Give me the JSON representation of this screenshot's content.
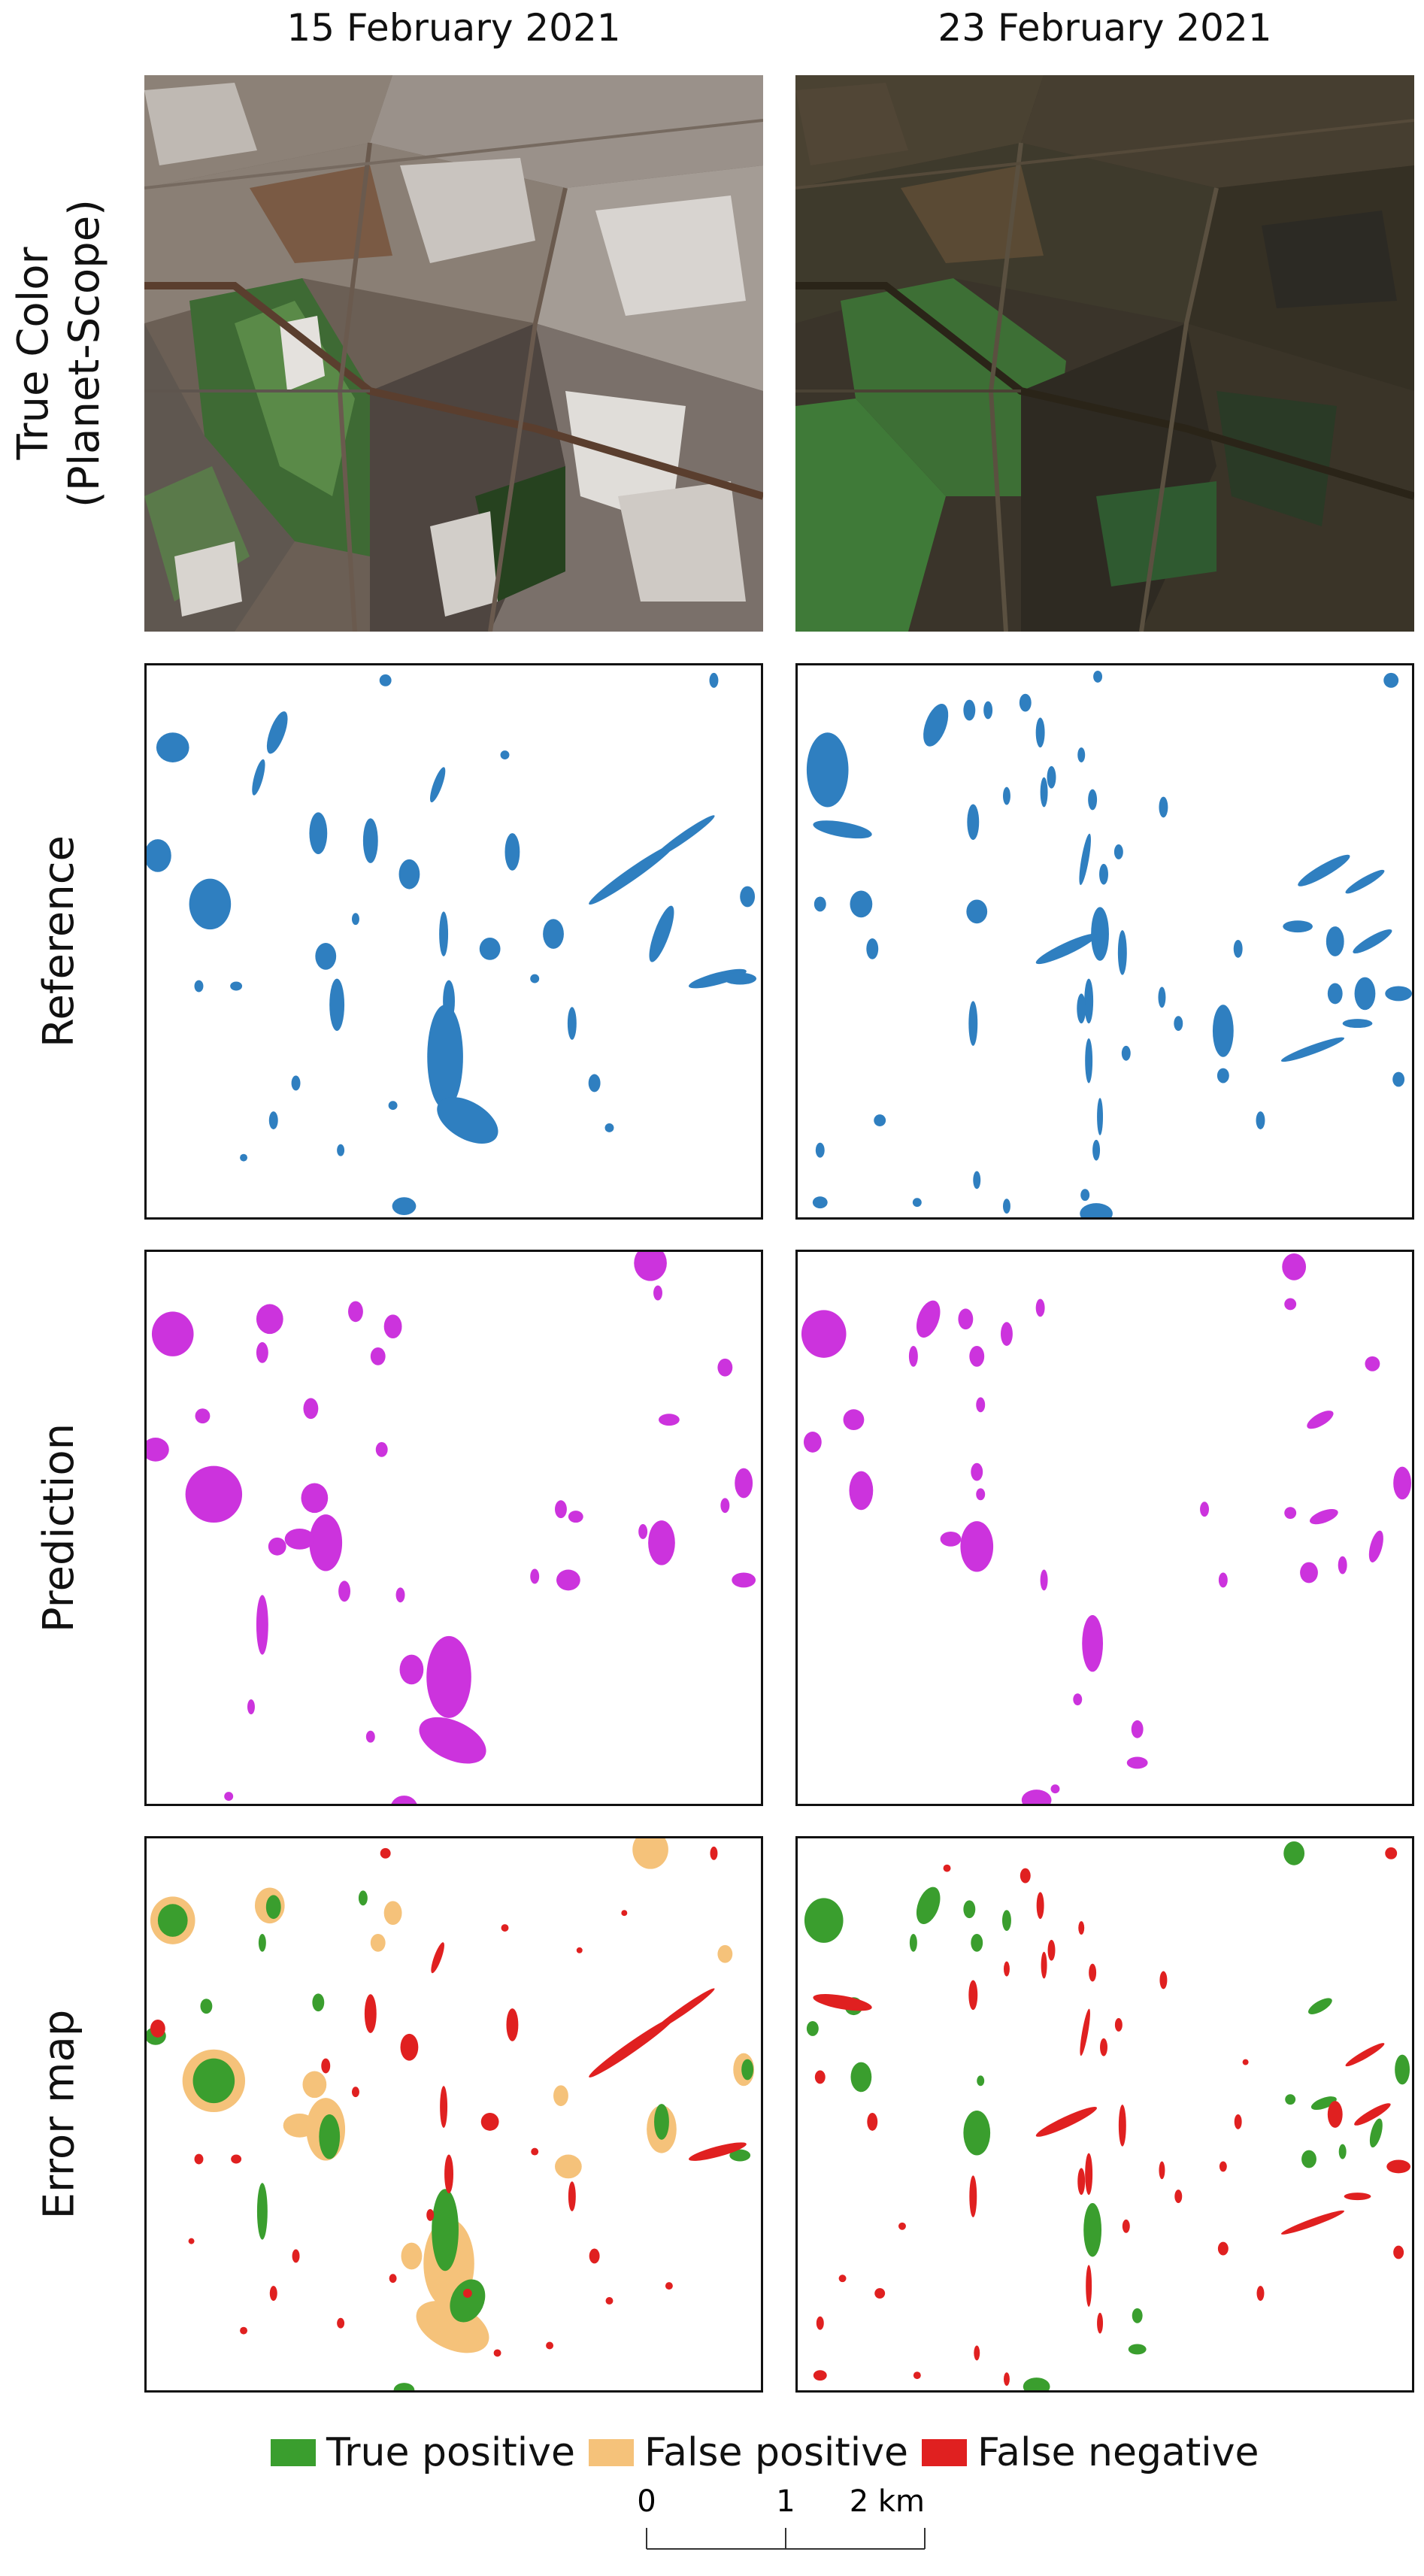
{
  "columns": [
    {
      "title": "15 February 2021"
    },
    {
      "title": "23 February 2021"
    }
  ],
  "rows": [
    {
      "label_line1": "True Color",
      "label_line2": "(Planet-Scope)"
    },
    {
      "label_line1": "Reference",
      "label_line2": ""
    },
    {
      "label_line1": "Prediction",
      "label_line2": ""
    },
    {
      "label_line1": "Error map",
      "label_line2": ""
    }
  ],
  "legend": [
    {
      "label": "True positive",
      "color": "#3a9e2e"
    },
    {
      "label": "False positive",
      "color": "#f5c27a"
    },
    {
      "label": "False negative",
      "color": "#e02020"
    }
  ],
  "scalebar": {
    "tick0": "0",
    "tick1": "1",
    "tick2": "2 km"
  },
  "colors": {
    "reference": "#2f7fc0",
    "prediction": "#cc33dd",
    "true_positive": "#3a9e2e",
    "false_positive": "#f5c27a",
    "false_negative": "#e02020"
  }
}
